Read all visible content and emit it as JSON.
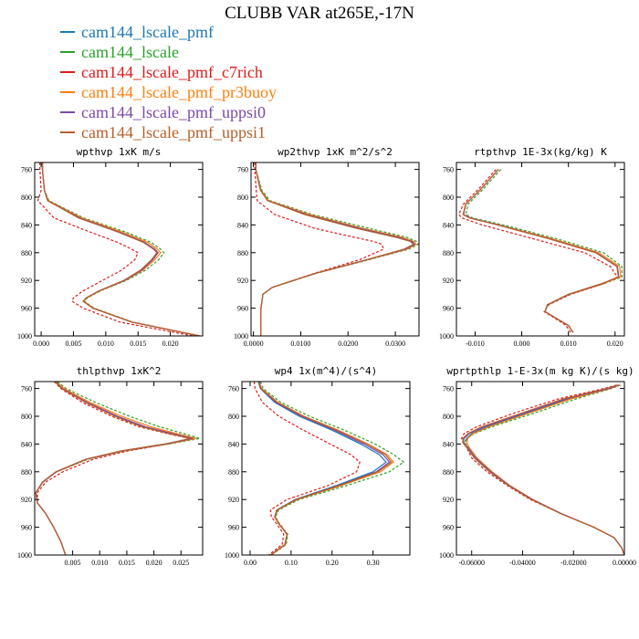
{
  "page": {
    "title": "CLUBB VAR at265E,-17N"
  },
  "legend": [
    {
      "label": "cam144_lscale_pmf",
      "color": "#1f77b4"
    },
    {
      "label": "cam144_lscale",
      "color": "#2ca02c"
    },
    {
      "label": "cam144_lscale_pmf_c7rich",
      "color": "#e01b1b"
    },
    {
      "label": "cam144_lscale_pmf_pr3buoy",
      "color": "#ff7f0e"
    },
    {
      "label": "cam144_lscale_pmf_uppsi0",
      "color": "#7a4aa8"
    },
    {
      "label": "cam144_lscale_pmf_uppsi1",
      "color": "#b8602a"
    }
  ],
  "chart_data": [
    {
      "type": "line",
      "title": "wpthvp   1xK m/s",
      "ylim": [
        1000,
        750
      ],
      "xlim": [
        -0.001,
        0.025
      ],
      "xticks": [
        0.0,
        0.005,
        0.01,
        0.015,
        0.02
      ],
      "xtick_labels": [
        "0.000",
        "0.005",
        "0.010",
        "0.015",
        "0.020"
      ],
      "yticks": [
        760,
        800,
        840,
        880,
        920,
        960,
        1000
      ],
      "y": [
        750,
        760,
        790,
        805,
        830,
        850,
        865,
        875,
        880,
        890,
        905,
        920,
        935,
        945,
        950,
        960,
        980,
        1000
      ],
      "series": [
        {
          "values": [
            0.0002,
            0.0002,
            0.0005,
            0.001,
            0.006,
            0.012,
            0.016,
            0.0175,
            0.018,
            0.0172,
            0.0155,
            0.0128,
            0.009,
            0.007,
            0.0065,
            0.008,
            0.014,
            0.0245
          ]
        },
        {
          "values": [
            0.0002,
            0.0002,
            0.0005,
            0.0012,
            0.0066,
            0.013,
            0.017,
            0.0185,
            0.019,
            0.0182,
            0.0162,
            0.0132,
            0.0092,
            0.0072,
            0.0067,
            0.0082,
            0.0142,
            0.0247
          ]
        },
        {
          "values": [
            -0.0002,
            -0.0002,
            0.0,
            -0.0005,
            0.002,
            0.0075,
            0.0118,
            0.014,
            0.015,
            0.0145,
            0.0125,
            0.0095,
            0.0065,
            0.005,
            0.0048,
            0.0065,
            0.0122,
            0.0235
          ]
        },
        {
          "values": [
            0.0002,
            0.0002,
            0.0005,
            0.0011,
            0.0063,
            0.0125,
            0.0165,
            0.018,
            0.0185,
            0.0176,
            0.0158,
            0.013,
            0.0091,
            0.0071,
            0.0066,
            0.0081,
            0.0141,
            0.0246
          ]
        },
        {
          "values": [
            0.0002,
            0.0002,
            0.0005,
            0.001,
            0.006,
            0.012,
            0.016,
            0.0176,
            0.0181,
            0.0173,
            0.0156,
            0.0129,
            0.009,
            0.007,
            0.0065,
            0.008,
            0.014,
            0.0245
          ]
        },
        {
          "values": [
            0.0002,
            0.0002,
            0.0005,
            0.001,
            0.0058,
            0.0118,
            0.0158,
            0.0174,
            0.0179,
            0.0171,
            0.0154,
            0.0128,
            0.009,
            0.007,
            0.0065,
            0.008,
            0.014,
            0.0245
          ]
        }
      ]
    },
    {
      "type": "line",
      "title": "wp2thvp   1xK m^2/s^2",
      "ylim": [
        1000,
        750
      ],
      "xlim": [
        -0.0005,
        0.035
      ],
      "xticks": [
        0.0,
        0.01,
        0.02,
        0.03
      ],
      "xtick_labels": [
        "0.0000",
        "0.0100",
        "0.0200",
        "0.0300"
      ],
      "yticks": [
        760,
        800,
        840,
        880,
        920,
        960,
        1000
      ],
      "y": [
        750,
        760,
        790,
        805,
        825,
        845,
        858,
        864,
        868,
        875,
        890,
        910,
        930,
        940,
        960,
        1000
      ],
      "series": [
        {
          "values": [
            0.0005,
            0.0005,
            0.0015,
            0.003,
            0.011,
            0.022,
            0.0305,
            0.0335,
            0.034,
            0.032,
            0.024,
            0.013,
            0.004,
            0.002,
            0.0016,
            0.0016
          ]
        },
        {
          "values": [
            0.0005,
            0.0005,
            0.0018,
            0.0035,
            0.0125,
            0.0245,
            0.0325,
            0.0345,
            0.0348,
            0.0328,
            0.0245,
            0.0132,
            0.0041,
            0.002,
            0.0016,
            0.0016
          ]
        },
        {
          "values": [
            0.0003,
            0.0003,
            0.0006,
            0.0008,
            0.0045,
            0.013,
            0.0215,
            0.0255,
            0.0272,
            0.0275,
            0.0225,
            0.0128,
            0.004,
            0.002,
            0.0016,
            0.0016
          ]
        },
        {
          "values": [
            0.0005,
            0.0005,
            0.0016,
            0.0032,
            0.0118,
            0.0232,
            0.0315,
            0.034,
            0.0344,
            0.0324,
            0.0242,
            0.0131,
            0.004,
            0.002,
            0.0016,
            0.0016
          ]
        },
        {
          "values": [
            0.0005,
            0.0005,
            0.0015,
            0.003,
            0.0112,
            0.0225,
            0.0308,
            0.0336,
            0.0341,
            0.0321,
            0.0241,
            0.013,
            0.004,
            0.002,
            0.0016,
            0.0016
          ]
        },
        {
          "values": [
            0.0005,
            0.0005,
            0.0015,
            0.003,
            0.0108,
            0.0218,
            0.0302,
            0.0332,
            0.0338,
            0.0318,
            0.024,
            0.013,
            0.004,
            0.002,
            0.0016,
            0.0016
          ]
        }
      ]
    },
    {
      "type": "line",
      "title": "rtpthvp   1E-3x(kg/kg) K",
      "ylim": [
        1000,
        750
      ],
      "xlim": [
        -0.014,
        0.022
      ],
      "xticks": [
        -0.01,
        0.0,
        0.01,
        0.02
      ],
      "xtick_labels": [
        "-0.010",
        "0.000",
        "0.010",
        "0.020"
      ],
      "yticks": [
        760,
        800,
        840,
        880,
        920,
        960,
        1000
      ],
      "y": [
        760,
        775,
        790,
        800,
        810,
        825,
        830,
        840,
        860,
        880,
        900,
        915,
        925,
        940,
        955,
        965,
        975,
        985,
        995
      ],
      "series": [
        {
          "values": [
            -0.005,
            -0.007,
            -0.009,
            -0.0105,
            -0.012,
            -0.0125,
            -0.011,
            -0.005,
            0.006,
            0.016,
            0.0205,
            0.0208,
            0.017,
            0.01,
            0.0055,
            0.005,
            0.0075,
            0.01,
            0.011
          ]
        },
        {
          "values": [
            -0.0045,
            -0.0065,
            -0.0085,
            -0.01,
            -0.0115,
            -0.012,
            -0.0105,
            -0.004,
            0.0075,
            0.0175,
            0.0215,
            0.0215,
            0.0175,
            0.0102,
            0.0056,
            0.005,
            0.0075,
            0.01,
            0.011
          ]
        },
        {
          "values": [
            -0.0055,
            -0.0075,
            -0.0095,
            -0.011,
            -0.0125,
            -0.0135,
            -0.0128,
            -0.0085,
            0.0025,
            0.0135,
            0.019,
            0.0205,
            0.0175,
            0.0105,
            0.0058,
            0.0048,
            0.0072,
            0.0095,
            0.0105
          ]
        },
        {
          "values": [
            -0.005,
            -0.007,
            -0.009,
            -0.0105,
            -0.012,
            -0.0125,
            -0.011,
            -0.0048,
            0.0065,
            0.0165,
            0.021,
            0.0212,
            0.0172,
            0.0101,
            0.0055,
            0.005,
            0.0075,
            0.01,
            0.011
          ]
        },
        {
          "values": [
            -0.005,
            -0.007,
            -0.009,
            -0.0105,
            -0.012,
            -0.0125,
            -0.011,
            -0.005,
            0.006,
            0.016,
            0.0205,
            0.0208,
            0.017,
            0.01,
            0.0055,
            0.005,
            0.0075,
            0.01,
            0.011
          ]
        },
        {
          "values": [
            -0.005,
            -0.007,
            -0.009,
            -0.0105,
            -0.012,
            -0.0126,
            -0.0112,
            -0.0052,
            0.0058,
            0.0158,
            0.0204,
            0.0207,
            0.017,
            0.01,
            0.0055,
            0.005,
            0.0075,
            0.01,
            0.011
          ]
        }
      ]
    },
    {
      "type": "line",
      "title": "thlpthvp   1xK^2",
      "ylim": [
        1000,
        750
      ],
      "xlim": [
        -0.002,
        0.029
      ],
      "xticks": [
        0.005,
        0.01,
        0.015,
        0.02,
        0.025
      ],
      "xtick_labels": [
        "0.005",
        "0.010",
        "0.015",
        "0.020",
        "0.025"
      ],
      "yticks": [
        760,
        800,
        840,
        880,
        920,
        960,
        1000
      ],
      "y": [
        750,
        760,
        780,
        800,
        815,
        825,
        832,
        840,
        850,
        862,
        880,
        895,
        910,
        925,
        940,
        960,
        980,
        1000
      ],
      "series": [
        {
          "values": [
            0.0018,
            0.003,
            0.0075,
            0.013,
            0.018,
            0.023,
            0.027,
            0.022,
            0.014,
            0.0075,
            0.002,
            -0.0005,
            -0.0018,
            -0.0015,
            0.0,
            0.0015,
            0.0028,
            0.0037
          ]
        },
        {
          "values": [
            0.0022,
            0.0038,
            0.0092,
            0.0155,
            0.021,
            0.0255,
            0.0285,
            0.0228,
            0.0145,
            0.0078,
            0.0021,
            -0.0005,
            -0.0018,
            -0.0015,
            0.0,
            0.0015,
            0.0028,
            0.0037
          ]
        },
        {
          "values": [
            0.0016,
            0.0028,
            0.0068,
            0.0122,
            0.0172,
            0.0225,
            0.0265,
            0.0225,
            0.0152,
            0.0088,
            0.0032,
            0.0,
            -0.0015,
            -0.0015,
            0.0,
            0.0015,
            0.0028,
            0.0037
          ]
        },
        {
          "values": [
            0.0019,
            0.0034,
            0.0082,
            0.014,
            0.0194,
            0.0242,
            0.0278,
            0.0225,
            0.0142,
            0.0076,
            0.002,
            -0.0005,
            -0.0018,
            -0.0015,
            0.0,
            0.0015,
            0.0028,
            0.0037
          ]
        },
        {
          "values": [
            0.0018,
            0.0031,
            0.0077,
            0.0133,
            0.0184,
            0.0234,
            0.0272,
            0.0223,
            0.0141,
            0.0075,
            0.002,
            -0.0005,
            -0.0018,
            -0.0015,
            0.0,
            0.0015,
            0.0028,
            0.0037
          ]
        },
        {
          "values": [
            0.0017,
            0.003,
            0.0074,
            0.0128,
            0.0178,
            0.0228,
            0.0268,
            0.0221,
            0.0139,
            0.0074,
            0.0019,
            -0.0006,
            -0.0018,
            -0.0015,
            0.0,
            0.0015,
            0.0028,
            0.0037
          ]
        }
      ]
    },
    {
      "type": "line",
      "title": "wp4   1x(m^4)/(s^4)",
      "ylim": [
        1000,
        750
      ],
      "xlim": [
        -0.02,
        0.39
      ],
      "xticks": [
        0.0,
        0.1,
        0.2,
        0.3
      ],
      "xtick_labels": [
        "0.00",
        "0.10",
        "0.20",
        "0.30"
      ],
      "yticks": [
        760,
        800,
        840,
        880,
        920,
        960,
        1000
      ],
      "y": [
        750,
        760,
        780,
        800,
        820,
        840,
        855,
        866,
        880,
        900,
        920,
        935,
        945,
        955,
        970,
        985,
        1000
      ],
      "series": [
        {
          "values": [
            0.02,
            0.025,
            0.06,
            0.12,
            0.2,
            0.27,
            0.315,
            0.332,
            0.3,
            0.21,
            0.11,
            0.065,
            0.06,
            0.07,
            0.09,
            0.085,
            0.05
          ]
        },
        {
          "values": [
            0.025,
            0.032,
            0.075,
            0.145,
            0.23,
            0.305,
            0.35,
            0.375,
            0.34,
            0.235,
            0.12,
            0.07,
            0.062,
            0.072,
            0.092,
            0.088,
            0.052
          ]
        },
        {
          "values": [
            0.01,
            0.012,
            0.03,
            0.07,
            0.13,
            0.195,
            0.245,
            0.268,
            0.26,
            0.19,
            0.09,
            0.05,
            0.052,
            0.065,
            0.082,
            0.078,
            0.045
          ]
        },
        {
          "values": [
            0.022,
            0.028,
            0.068,
            0.132,
            0.215,
            0.288,
            0.334,
            0.35,
            0.318,
            0.222,
            0.115,
            0.067,
            0.061,
            0.071,
            0.091,
            0.086,
            0.051
          ]
        },
        {
          "values": [
            0.021,
            0.026,
            0.063,
            0.125,
            0.206,
            0.278,
            0.324,
            0.34,
            0.308,
            0.215,
            0.112,
            0.066,
            0.06,
            0.07,
            0.09,
            0.085,
            0.05
          ]
        },
        {
          "values": [
            0.022,
            0.027,
            0.066,
            0.13,
            0.212,
            0.285,
            0.33,
            0.345,
            0.312,
            0.218,
            0.113,
            0.066,
            0.06,
            0.07,
            0.09,
            0.085,
            0.05
          ]
        }
      ]
    },
    {
      "type": "line",
      "title": "wprtpthlp   1-E-3x(m kg K)/(s kg)",
      "ylim": [
        1000,
        750
      ],
      "xlim": [
        -0.066,
        0.0
      ],
      "xticks": [
        -0.06,
        -0.04,
        -0.02,
        0.0
      ],
      "xtick_labels": [
        "-0.06000",
        "-0.04000",
        "-0.02000",
        "0.00000"
      ],
      "yticks": [
        760,
        800,
        840,
        880,
        920,
        960,
        1000
      ],
      "y": [
        755,
        760,
        775,
        795,
        815,
        825,
        832,
        838,
        845,
        860,
        880,
        900,
        920,
        940,
        960,
        975,
        990,
        1000
      ],
      "series": [
        {
          "values": [
            -0.002,
            -0.006,
            -0.022,
            -0.038,
            -0.054,
            -0.06,
            -0.062,
            -0.062,
            -0.061,
            -0.058,
            -0.052,
            -0.045,
            -0.036,
            -0.025,
            -0.012,
            -0.004,
            -0.001,
            0.0
          ]
        },
        {
          "values": [
            -0.0015,
            -0.005,
            -0.019,
            -0.035,
            -0.052,
            -0.059,
            -0.062,
            -0.063,
            -0.061,
            -0.058,
            -0.052,
            -0.045,
            -0.036,
            -0.025,
            -0.012,
            -0.004,
            -0.001,
            0.0
          ]
        },
        {
          "values": [
            -0.003,
            -0.008,
            -0.026,
            -0.043,
            -0.058,
            -0.063,
            -0.064,
            -0.063,
            -0.062,
            -0.06,
            -0.054,
            -0.046,
            -0.037,
            -0.025,
            -0.012,
            -0.004,
            -0.001,
            0.0
          ]
        },
        {
          "values": [
            -0.0018,
            -0.0055,
            -0.021,
            -0.037,
            -0.053,
            -0.0595,
            -0.0615,
            -0.062,
            -0.061,
            -0.058,
            -0.052,
            -0.045,
            -0.036,
            -0.025,
            -0.012,
            -0.004,
            -0.001,
            0.0
          ]
        },
        {
          "values": [
            -0.002,
            -0.006,
            -0.023,
            -0.039,
            -0.055,
            -0.061,
            -0.063,
            -0.0635,
            -0.0615,
            -0.0585,
            -0.0525,
            -0.0452,
            -0.0362,
            -0.025,
            -0.012,
            -0.004,
            -0.001,
            0.0
          ]
        },
        {
          "values": [
            -0.0025,
            -0.007,
            -0.024,
            -0.04,
            -0.056,
            -0.0615,
            -0.0635,
            -0.0635,
            -0.062,
            -0.059,
            -0.053,
            -0.0455,
            -0.0365,
            -0.0252,
            -0.012,
            -0.004,
            -0.001,
            0.0
          ]
        }
      ]
    }
  ]
}
